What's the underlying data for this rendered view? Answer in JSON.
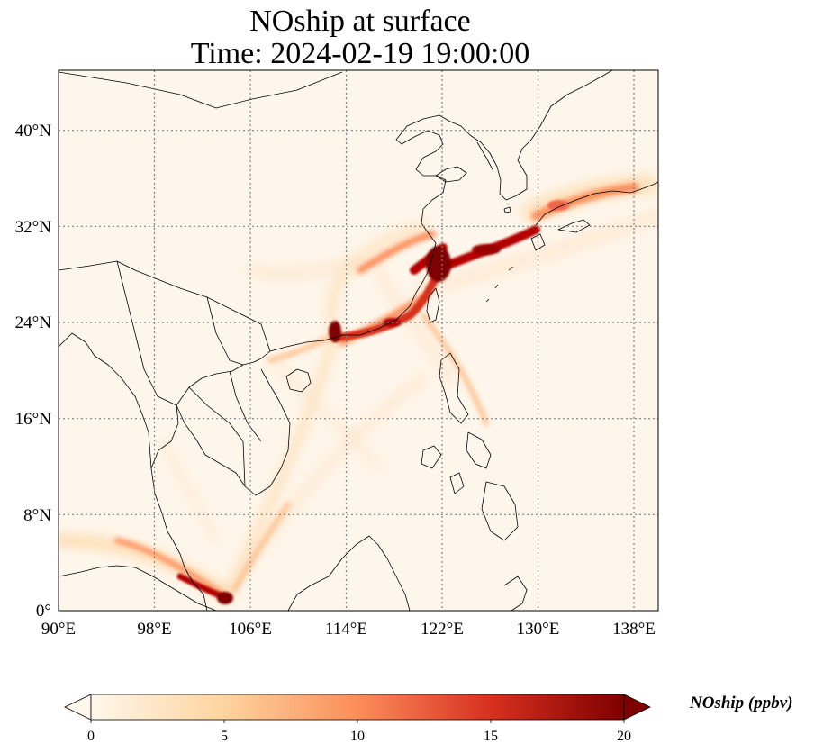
{
  "title_line1": "NOship at surface",
  "title_line2": "Time: 2024-02-19 19:00:00",
  "lon_ticks": [
    "90°E",
    "98°E",
    "106°E",
    "114°E",
    "122°E",
    "130°E",
    "138°E"
  ],
  "lat_ticks": [
    "0°",
    "8°N",
    "16°N",
    "24°N",
    "32°N",
    "40°N"
  ],
  "colorbar": {
    "label": "NOship (ppbv)",
    "ticks": [
      "0",
      "5",
      "10",
      "15",
      "20"
    ],
    "min": 0,
    "max": 20,
    "extend": "both",
    "colormap": "OrRd",
    "colors": [
      "#fff7ec",
      "#fdd49e",
      "#fc8d59",
      "#d7301f",
      "#7f0000"
    ]
  },
  "map": {
    "lon_range": [
      90,
      140
    ],
    "lat_range": [
      0,
      45
    ],
    "gridlines": "dotted",
    "grid_color": "#808080",
    "coastline_color": "#000000"
  }
}
